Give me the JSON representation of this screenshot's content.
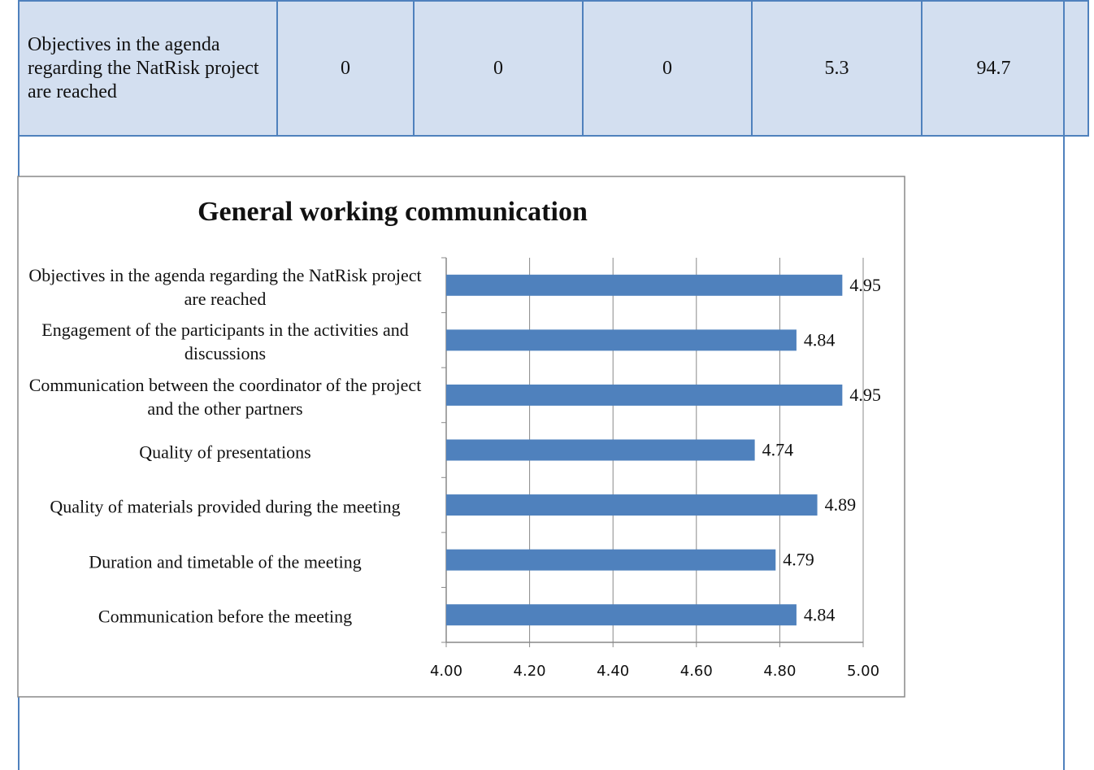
{
  "table": {
    "rows": [
      [
        "Objectives in the agenda regarding the NatRisk project are reached",
        "0",
        "0",
        "0",
        "5.3",
        "94.7"
      ]
    ]
  },
  "chart_data": {
    "type": "bar",
    "orientation": "horizontal",
    "title": "General working communication",
    "categories": [
      "Objectives in the agenda regarding the NatRisk project are reached",
      "Engagement of the participants in the activities and discussions",
      "Communication between the coordinator of the project and the other partners",
      "Quality of presentations",
      "Quality of materials provided during the meeting",
      "Duration and timetable of the meeting",
      "Communication before the meeting"
    ],
    "values": [
      4.95,
      4.84,
      4.95,
      4.74,
      4.89,
      4.79,
      4.84
    ],
    "color": "#4f81bd",
    "xlim": [
      4,
      5
    ],
    "xticks": [
      {
        "value": 4,
        "label": "4.00"
      },
      {
        "value": 4.2,
        "label": "4.20"
      },
      {
        "value": 4.4,
        "label": "4.40"
      },
      {
        "value": 4.6,
        "label": "4.60"
      },
      {
        "value": 4.8,
        "label": "4.80"
      },
      {
        "value": 5,
        "label": "5.00"
      }
    ],
    "grid": true
  }
}
